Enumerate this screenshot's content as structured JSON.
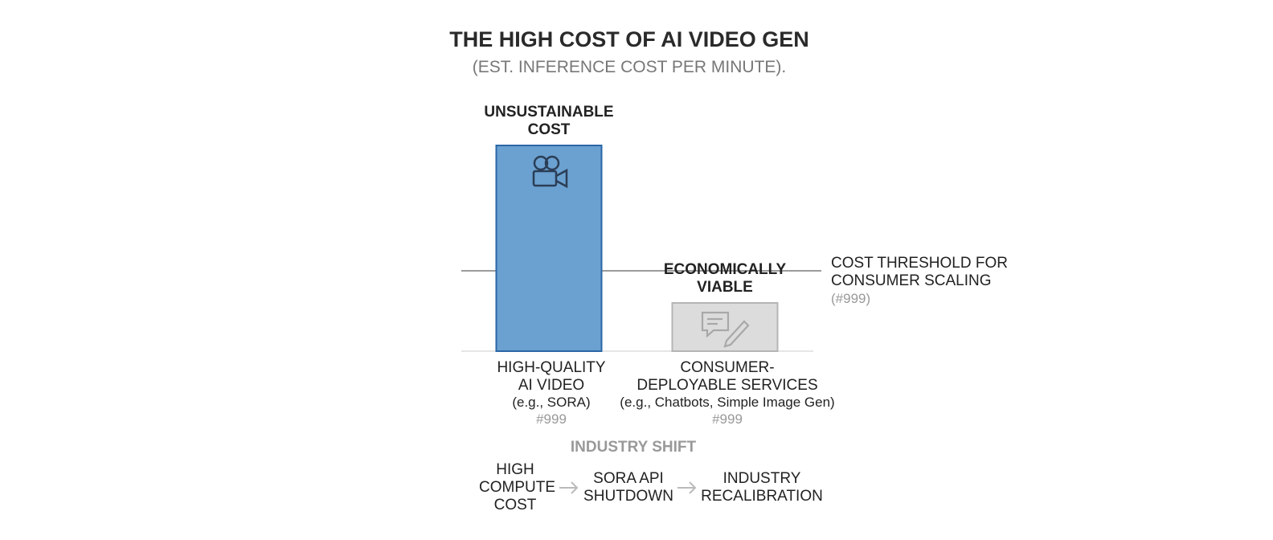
{
  "chart_data": {
    "type": "bar",
    "title": "THE HIGH COST OF AI VIDEO GEN",
    "subtitle": "(EST. INFERENCE COST PER MINUTE).",
    "categories": [
      "HIGH-QUALITY AI VIDEO",
      "CONSUMER-DEPLOYABLE SERVICES"
    ],
    "examples": [
      "(e.g., SORA)",
      "(e.g., Chatbots, Simple Image Gen)"
    ],
    "notes": [
      "#999",
      "#999"
    ],
    "annotations": [
      "UNSUSTAINABLE COST",
      "ECONOMICALLY VIABLE"
    ],
    "values": [
      256,
      60
    ],
    "colors": [
      "#6ba1d1",
      "#dcdcdc"
    ],
    "edge_colors": [
      "#2b66a6",
      "#b5b5b5"
    ],
    "threshold": {
      "value": 100,
      "label": "COST THRESHOLD FOR CONSUMER SCALING",
      "note": "(#999)"
    },
    "flow": {
      "title": "INDUSTRY SHIFT",
      "steps": [
        "HIGH COMPUTE COST",
        "SORA API SHUTDOWN",
        "INDUSTRY RECALIBRATION"
      ]
    }
  }
}
